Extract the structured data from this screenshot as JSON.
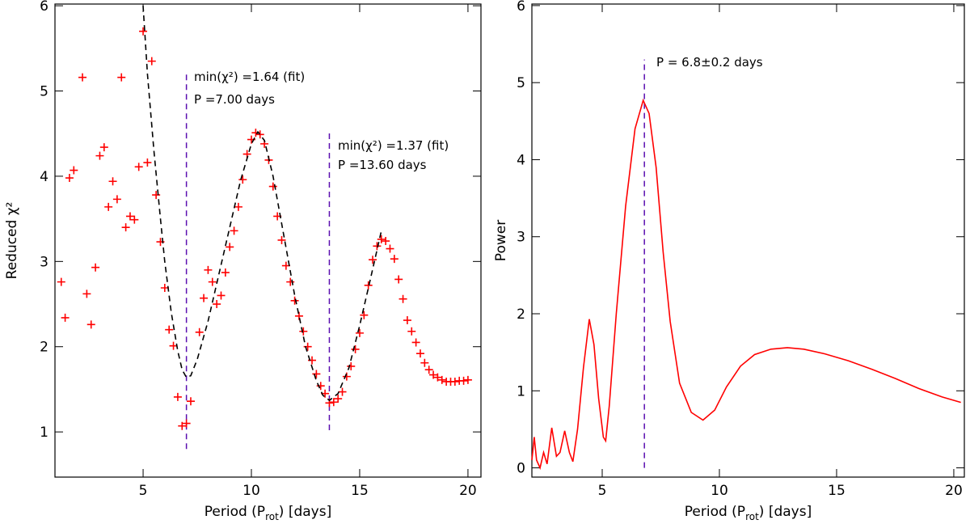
{
  "chart_data": [
    {
      "type": "scatter",
      "xlabel": [
        "Period (P",
        "rot",
        ") [days]"
      ],
      "ylabel": "Reduced χ²",
      "xlim": [
        0.93,
        20.6
      ],
      "ylim": [
        0.47,
        6.02
      ],
      "xticks": [
        5,
        10,
        15,
        20
      ],
      "yticks": [
        1,
        2,
        3,
        4,
        5,
        6
      ],
      "series": [
        {
          "type": "scatter",
          "color": "#ff0000",
          "x": [
            1.22,
            1.4,
            1.6,
            1.8,
            2.2,
            2.4,
            2.6,
            2.8,
            3.0,
            3.2,
            3.4,
            3.6,
            3.8,
            4.0,
            4.2,
            4.4,
            4.6,
            4.8,
            5.0,
            5.2,
            5.4,
            5.6,
            5.8,
            6.0,
            6.2,
            6.4,
            6.6,
            6.8,
            7.0,
            7.2,
            7.6,
            7.8,
            8.0,
            8.2,
            8.4,
            8.6,
            8.8,
            9.0,
            9.2,
            9.4,
            9.6,
            9.8,
            10.0,
            10.2,
            10.4,
            10.6,
            10.8,
            11.0,
            11.2,
            11.4,
            11.6,
            11.8,
            12.0,
            12.2,
            12.4,
            12.6,
            12.8,
            13.0,
            13.2,
            13.4,
            13.6,
            13.8,
            14.0,
            14.2,
            14.4,
            14.6,
            14.8,
            15.0,
            15.2,
            15.4,
            15.6,
            15.8,
            16.0,
            16.2,
            16.4,
            16.6,
            16.8,
            17.0,
            17.2,
            17.4,
            17.6,
            17.8,
            18.0,
            18.2,
            18.4,
            18.6,
            18.8,
            19.0,
            19.2,
            19.4,
            19.6,
            19.8,
            20.0
          ],
          "values": [
            2.76,
            2.34,
            3.98,
            4.07,
            5.16,
            2.62,
            2.26,
            2.93,
            4.24,
            4.34,
            3.64,
            3.94,
            3.73,
            5.16,
            3.4,
            3.53,
            3.49,
            4.11,
            5.7,
            4.16,
            5.35,
            3.78,
            3.23,
            2.69,
            2.2,
            2.01,
            1.41,
            1.07,
            1.1,
            1.36,
            2.17,
            2.57,
            2.9,
            2.76,
            2.5,
            2.6,
            2.87,
            3.17,
            3.36,
            3.64,
            3.96,
            4.26,
            4.43,
            4.51,
            4.49,
            4.38,
            4.19,
            3.88,
            3.53,
            3.25,
            2.95,
            2.76,
            2.54,
            2.36,
            2.18,
            2.0,
            1.84,
            1.68,
            1.54,
            1.45,
            1.34,
            1.35,
            1.39,
            1.47,
            1.65,
            1.77,
            1.97,
            2.16,
            2.37,
            2.72,
            3.02,
            3.18,
            3.26,
            3.24,
            3.15,
            3.03,
            2.79,
            2.56,
            2.31,
            2.18,
            2.05,
            1.92,
            1.81,
            1.73,
            1.67,
            1.64,
            1.61,
            1.59,
            1.59,
            1.59,
            1.6,
            1.6,
            1.61
          ]
        },
        {
          "type": "line",
          "color": "#000000",
          "dashed": true,
          "x": [
            5.0,
            5.2,
            5.5,
            5.8,
            6.0,
            6.3,
            6.6,
            6.8,
            7.0,
            7.2,
            7.5,
            8.0,
            8.5,
            9.0,
            9.5,
            10.0,
            10.3,
            10.6,
            11.0,
            11.5,
            12.0,
            12.5,
            13.0,
            13.3,
            13.6,
            14.0,
            14.5,
            15.0,
            15.5,
            16.0
          ],
          "values": [
            6.0,
            5.2,
            4.3,
            3.5,
            3.0,
            2.4,
            1.95,
            1.73,
            1.64,
            1.66,
            1.85,
            2.3,
            2.85,
            3.4,
            3.95,
            4.38,
            4.52,
            4.42,
            4.0,
            3.3,
            2.6,
            2.0,
            1.6,
            1.43,
            1.37,
            1.45,
            1.75,
            2.25,
            2.8,
            3.36
          ]
        }
      ],
      "vlines": [
        {
          "x": 7.0,
          "ymin": 0.8,
          "ymax": 5.23,
          "color": "#5b0fb0"
        },
        {
          "x": 13.6,
          "ymin": 1.02,
          "ymax": 4.53,
          "color": "#5b0fb0"
        }
      ],
      "annotations": [
        [
          "min(χ²) =1.64 (fit)",
          "P =7.00 days"
        ],
        [
          "min(χ²) =1.37 (fit)",
          "P =13.60 days"
        ]
      ]
    },
    {
      "type": "line",
      "xlabel": [
        "Period (P",
        "rot",
        ") [days]"
      ],
      "ylabel": "Power",
      "xlim": [
        2.0,
        20.45
      ],
      "ylim": [
        -0.12,
        6.02
      ],
      "xticks": [
        5,
        10,
        15,
        20
      ],
      "yticks": [
        0,
        1,
        2,
        3,
        4,
        5,
        6
      ],
      "series": [
        {
          "type": "line",
          "color": "#ff0000",
          "x": [
            2.0,
            2.1,
            2.2,
            2.35,
            2.5,
            2.65,
            2.85,
            3.05,
            3.2,
            3.4,
            3.6,
            3.75,
            3.95,
            4.2,
            4.45,
            4.65,
            4.85,
            5.05,
            5.15,
            5.3,
            5.6,
            6.0,
            6.4,
            6.75,
            7.0,
            7.3,
            7.6,
            7.9,
            8.3,
            8.8,
            9.3,
            9.8,
            10.3,
            10.9,
            11.5,
            12.2,
            12.9,
            13.6,
            14.5,
            15.5,
            16.5,
            17.5,
            18.5,
            19.5,
            20.3
          ],
          "values": [
            0.1,
            0.4,
            0.1,
            0.0,
            0.2,
            0.05,
            0.52,
            0.15,
            0.2,
            0.48,
            0.2,
            0.08,
            0.5,
            1.3,
            1.93,
            1.6,
            0.9,
            0.4,
            0.35,
            0.8,
            2.0,
            3.4,
            4.4,
            4.77,
            4.6,
            3.9,
            2.8,
            1.9,
            1.1,
            0.72,
            0.62,
            0.75,
            1.05,
            1.32,
            1.47,
            1.54,
            1.56,
            1.54,
            1.48,
            1.39,
            1.28,
            1.16,
            1.03,
            0.92,
            0.85
          ]
        }
      ],
      "vlines": [
        {
          "x": 6.8,
          "ymin": 0.0,
          "ymax": 5.3,
          "color": "#5b0fb0"
        }
      ],
      "annotations": [
        [
          "P = 6.8±0.2 days"
        ]
      ]
    }
  ]
}
